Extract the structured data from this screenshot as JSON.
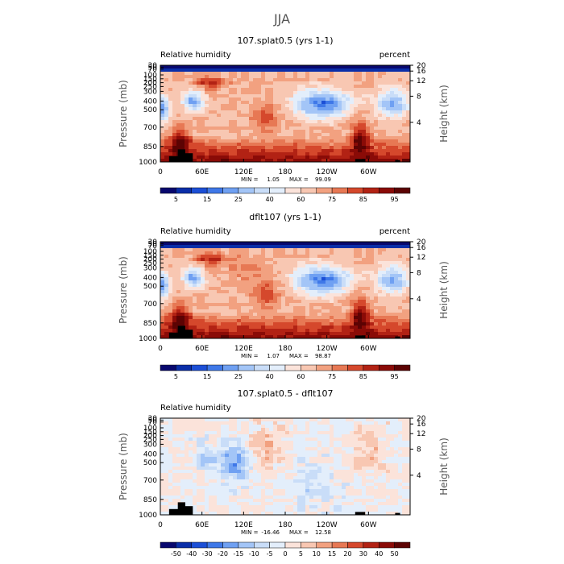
{
  "page_title": "JJA",
  "chart_data": [
    {
      "type": "heatmap",
      "title": "107.splat0.5 (yrs 1-1)",
      "subtitle_left": "Relative humidity",
      "subtitle_right": "percent",
      "ylabel": "Pressure (mb)",
      "y2label": "Height (km)",
      "xticks": [
        "0",
        "60E",
        "120E",
        "180",
        "120W",
        "60W"
      ],
      "yticks": [
        "30",
        "50",
        "70",
        "100",
        "150",
        "200",
        "250",
        "300",
        "400",
        "500",
        "700",
        "850",
        "1000"
      ],
      "y2ticks": [
        "20",
        "16",
        "12",
        "8",
        "4"
      ],
      "stats": {
        "min_label": "MIN =",
        "min": "1.05",
        "max_label": "MAX =",
        "max": "99.09"
      },
      "colorbar": {
        "labels": [
          "5",
          "15",
          "25",
          "40",
          "60",
          "75",
          "85",
          "95"
        ],
        "colors": [
          "#08086e",
          "#0a2ea8",
          "#1c4fd6",
          "#3f78e8",
          "#6fa0f2",
          "#a3c5f7",
          "#c9ddf8",
          "#e3eefb",
          "#fbe3da",
          "#f8c7b2",
          "#f2a180",
          "#e77854",
          "#d5482c",
          "#b22214",
          "#8a0b07",
          "#5c0303"
        ]
      },
      "pattern": "a"
    },
    {
      "type": "heatmap",
      "title": "dflt107 (yrs 1-1)",
      "subtitle_left": "Relative humidity",
      "subtitle_right": "percent",
      "ylabel": "Pressure (mb)",
      "y2label": "Height (km)",
      "xticks": [
        "0",
        "60E",
        "120E",
        "180",
        "120W",
        "60W"
      ],
      "yticks": [
        "30",
        "50",
        "70",
        "100",
        "150",
        "200",
        "250",
        "300",
        "400",
        "500",
        "700",
        "850",
        "1000"
      ],
      "y2ticks": [
        "20",
        "16",
        "12",
        "8",
        "4"
      ],
      "stats": {
        "min_label": "MIN =",
        "min": "1.07",
        "max_label": "MAX =",
        "max": "98.87"
      },
      "colorbar": {
        "labels": [
          "5",
          "15",
          "25",
          "40",
          "60",
          "75",
          "85",
          "95"
        ],
        "colors": [
          "#08086e",
          "#0a2ea8",
          "#1c4fd6",
          "#3f78e8",
          "#6fa0f2",
          "#a3c5f7",
          "#c9ddf8",
          "#e3eefb",
          "#fbe3da",
          "#f8c7b2",
          "#f2a180",
          "#e77854",
          "#d5482c",
          "#b22214",
          "#8a0b07",
          "#5c0303"
        ]
      },
      "pattern": "b"
    },
    {
      "type": "heatmap",
      "title": "107.splat0.5 - dflt107",
      "subtitle_left": "Relative humidity",
      "subtitle_right": "",
      "ylabel": "Pressure (mb)",
      "y2label": "Height (km)",
      "xticks": [
        "0",
        "60E",
        "120E",
        "180",
        "120W",
        "60W"
      ],
      "yticks": [
        "30",
        "50",
        "70",
        "100",
        "150",
        "200",
        "250",
        "300",
        "400",
        "500",
        "700",
        "850",
        "1000"
      ],
      "y2ticks": [
        "20",
        "16",
        "12",
        "8",
        "4"
      ],
      "stats": {
        "min_label": "MIN =",
        "min": "-16.46",
        "max_label": "MAX =",
        "max": "12.58"
      },
      "colorbar": {
        "labels": [
          "-50",
          "-40",
          "-30",
          "-20",
          "-15",
          "-10",
          "-5",
          "0",
          "5",
          "10",
          "15",
          "20",
          "30",
          "40",
          "50"
        ],
        "colors": [
          "#08086e",
          "#0a2ea8",
          "#1c4fd6",
          "#3f78e8",
          "#6fa0f2",
          "#a3c5f7",
          "#c9ddf8",
          "#e3eefb",
          "#fbe3da",
          "#f8c7b2",
          "#f2a180",
          "#e77854",
          "#d5482c",
          "#b22214",
          "#8a0b07",
          "#5c0303"
        ]
      },
      "pattern": "diff"
    }
  ]
}
